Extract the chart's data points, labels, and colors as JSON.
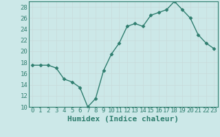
{
  "x": [
    0,
    1,
    2,
    3,
    4,
    5,
    6,
    7,
    8,
    9,
    10,
    11,
    12,
    13,
    14,
    15,
    16,
    17,
    18,
    19,
    20,
    21,
    22,
    23
  ],
  "y": [
    17.5,
    17.5,
    17.5,
    17.0,
    15.0,
    14.5,
    13.5,
    10.0,
    11.5,
    16.5,
    19.5,
    21.5,
    24.5,
    25.0,
    24.5,
    26.5,
    27.0,
    27.5,
    29.0,
    27.5,
    26.0,
    23.0,
    21.5,
    20.5
  ],
  "xlabel": "Humidex (Indice chaleur)",
  "ylim": [
    10,
    29
  ],
  "xlim": [
    -0.5,
    23.5
  ],
  "yticks": [
    10,
    12,
    14,
    16,
    18,
    20,
    22,
    24,
    26,
    28
  ],
  "xticks": [
    0,
    1,
    2,
    3,
    4,
    5,
    6,
    7,
    8,
    9,
    10,
    11,
    12,
    13,
    14,
    15,
    16,
    17,
    18,
    19,
    20,
    21,
    22,
    23
  ],
  "line_color": "#2e7d6e",
  "marker": "D",
  "marker_size": 2.5,
  "bg_color": "#cce8e8",
  "grid_color": "#c8dada",
  "xlabel_fontsize": 8,
  "tick_fontsize": 6.5
}
